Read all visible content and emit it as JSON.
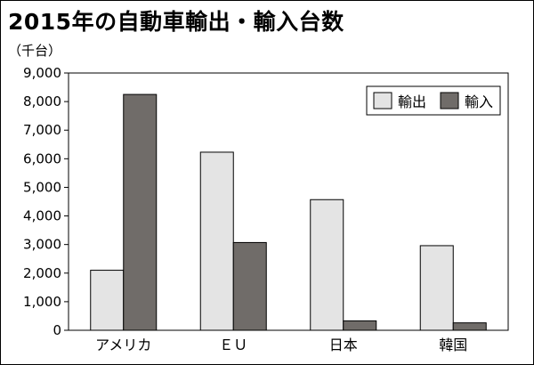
{
  "chart_data": {
    "type": "bar",
    "title": "2015年の自動車輸出・輸入台数",
    "unit_label": "（千台）",
    "categories": [
      "アメリカ",
      "ＥＵ",
      "日本",
      "韓国"
    ],
    "series": [
      {
        "name": "輸出",
        "values": [
          2100,
          6230,
          4570,
          2960
        ],
        "color": "#e4e4e4"
      },
      {
        "name": "輸入",
        "values": [
          8250,
          3070,
          330,
          260
        ],
        "color": "#706c69"
      }
    ],
    "ylim": [
      0,
      9000
    ],
    "yticks": [
      0,
      1000,
      2000,
      3000,
      4000,
      5000,
      6000,
      7000,
      8000,
      9000
    ],
    "ytick_labels": [
      "0",
      "1,000",
      "2,000",
      "3,000",
      "4,000",
      "5,000",
      "6,000",
      "7,000",
      "8,000",
      "9,000"
    ],
    "grid": false,
    "legend": "top-right"
  }
}
